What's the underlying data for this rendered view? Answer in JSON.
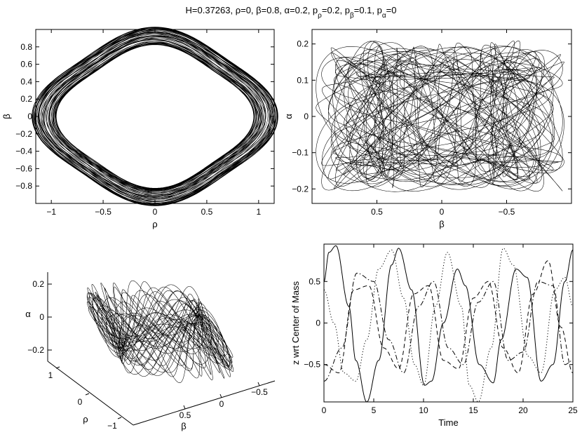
{
  "figure": {
    "title_parts": [
      {
        "t": "H=0.37263, ρ=0, β=0.8, α=0.2, p",
        "sub": false
      },
      {
        "t": "ρ",
        "sub": true
      },
      {
        "t": "=0.2, p",
        "sub": false
      },
      {
        "t": "β",
        "sub": true
      },
      {
        "t": "=0.1, p",
        "sub": false
      },
      {
        "t": "α",
        "sub": true
      },
      {
        "t": "=0",
        "sub": false
      }
    ]
  },
  "chart_data": [
    {
      "type": "line",
      "panel": "rho-beta",
      "xlabel": "ρ",
      "ylabel": "β",
      "xlim": [
        -1.15,
        1.15
      ],
      "ylim": [
        -1.0,
        1.0
      ],
      "xticks": [
        -1,
        -0.5,
        0,
        0.5,
        1
      ],
      "xtick_labels": [
        "−1",
        "−0.5",
        "0",
        "0.5",
        "1"
      ],
      "yticks": [
        -0.8,
        -0.6,
        -0.4,
        -0.2,
        0,
        0.2,
        0.4,
        0.6,
        0.8
      ],
      "ytick_labels": [
        "−0.8",
        "−0.6",
        "−0.4",
        "−0.2",
        "0",
        "0.2",
        "0.4",
        "0.6",
        "0.8"
      ],
      "grid": false,
      "trajectory": {
        "outer_rho": 1.12,
        "outer_beta": 0.97,
        "inner_radius": 0.56,
        "wobble_periods": 60,
        "color": "#000000"
      }
    },
    {
      "type": "line",
      "panel": "beta-alpha",
      "xlabel": "β",
      "ylabel": "α",
      "xlim": [
        1.0,
        -1.0
      ],
      "ylim": [
        -0.24,
        0.24
      ],
      "xticks": [
        0.5,
        0,
        -0.5
      ],
      "xtick_labels": [
        "0.5",
        "0",
        "−0.5"
      ],
      "yticks": [
        -0.2,
        -0.1,
        0,
        0.1,
        0.2
      ],
      "ytick_labels": [
        "−0.2",
        "−0.1",
        "0",
        "0.1",
        "0.2"
      ],
      "grid": false,
      "trajectory": {
        "beta_amplitude": 0.97,
        "alpha_amplitude": 0.21,
        "color": "#000000"
      }
    },
    {
      "type": "line",
      "panel": "3d-rho-beta-alpha",
      "xlabel": "β",
      "ylabel": "ρ",
      "zlabel": "α",
      "xticks": [
        0.5,
        0,
        -0.5
      ],
      "xtick_labels": [
        "0.5",
        "0",
        "−0.5"
      ],
      "yticks": [
        1,
        0,
        -1
      ],
      "ytick_labels": [
        "1",
        "0",
        "−1"
      ],
      "zticks": [
        0.2,
        0,
        -0.2
      ],
      "ztick_labels": [
        "0.2",
        "0",
        "−0.2"
      ],
      "grid": false,
      "trajectory": {
        "color": "#000000"
      }
    },
    {
      "type": "line",
      "panel": "z-vs-time",
      "xlabel": "Time",
      "ylabel": "z wrt Center of Mass",
      "xlim": [
        0,
        25
      ],
      "ylim": [
        -0.95,
        0.95
      ],
      "xticks": [
        0,
        5,
        10,
        15,
        20,
        25
      ],
      "xtick_labels": [
        "0",
        "5",
        "10",
        "15",
        "20",
        "25"
      ],
      "yticks": [
        -0.5,
        0,
        0.5
      ],
      "ytick_labels": [
        "−0.5",
        "0",
        "0.5"
      ],
      "grid": false,
      "series": [
        {
          "style": "solid",
          "t": [
            0,
            0.5,
            1.2,
            2.5,
            3.2,
            4.3,
            5.5,
            6.8,
            7.5,
            8.8,
            10.1,
            10.8,
            12.0,
            13.4,
            14.2,
            15.6,
            17.0,
            17.8,
            19.3,
            20.4,
            21.8,
            23.0,
            24.2,
            25
          ],
          "z": [
            0.5,
            0.85,
            0.93,
            0.2,
            -0.45,
            -0.95,
            -0.45,
            0.7,
            0.9,
            0.4,
            -0.75,
            -0.7,
            0.0,
            0.65,
            0.45,
            -0.5,
            -0.72,
            -0.2,
            0.65,
            0.55,
            -0.7,
            -0.5,
            0.5,
            0.88
          ]
        },
        {
          "style": "dotted",
          "t": [
            0,
            1.0,
            2.0,
            3.2,
            4.3,
            5.5,
            6.8,
            8.0,
            9.1,
            10.0,
            11.2,
            12.4,
            13.8,
            14.6,
            15.5,
            16.8,
            18.0,
            19.0,
            20.5,
            21.8,
            23.2,
            24.2,
            25
          ],
          "z": [
            0.4,
            0.0,
            -0.6,
            -0.7,
            -0.2,
            0.65,
            0.88,
            0.3,
            -0.5,
            -0.75,
            0.2,
            0.85,
            0.2,
            -0.75,
            -0.95,
            -0.3,
            0.9,
            0.7,
            -0.4,
            -0.6,
            0.4,
            0.55,
            0.2
          ]
        },
        {
          "style": "dashed",
          "t": [
            0,
            1.5,
            3.0,
            4.5,
            6.0,
            7.5,
            9.0,
            10.5,
            12.0,
            13.5,
            15.0,
            16.5,
            18.0,
            19.5,
            21.0,
            22.5,
            23.8,
            25
          ],
          "z": [
            -0.5,
            -0.6,
            0.4,
            0.45,
            -0.3,
            -0.55,
            0.35,
            0.45,
            -0.45,
            -0.55,
            0.3,
            0.5,
            -0.3,
            -0.6,
            0.35,
            0.75,
            -0.05,
            -0.6
          ]
        },
        {
          "style": "dashdot",
          "t": [
            0,
            1.8,
            3.3,
            5.0,
            6.5,
            8.0,
            9.5,
            11.0,
            12.5,
            14.0,
            15.5,
            17.0,
            18.5,
            20.0,
            21.5,
            23.0,
            24.2,
            25
          ],
          "z": [
            -0.7,
            -0.3,
            0.6,
            0.5,
            -0.2,
            -0.6,
            0.2,
            0.5,
            -0.3,
            -0.5,
            0.25,
            0.5,
            -0.45,
            -0.35,
            0.5,
            0.45,
            -0.5,
            -0.45
          ]
        }
      ]
    }
  ]
}
